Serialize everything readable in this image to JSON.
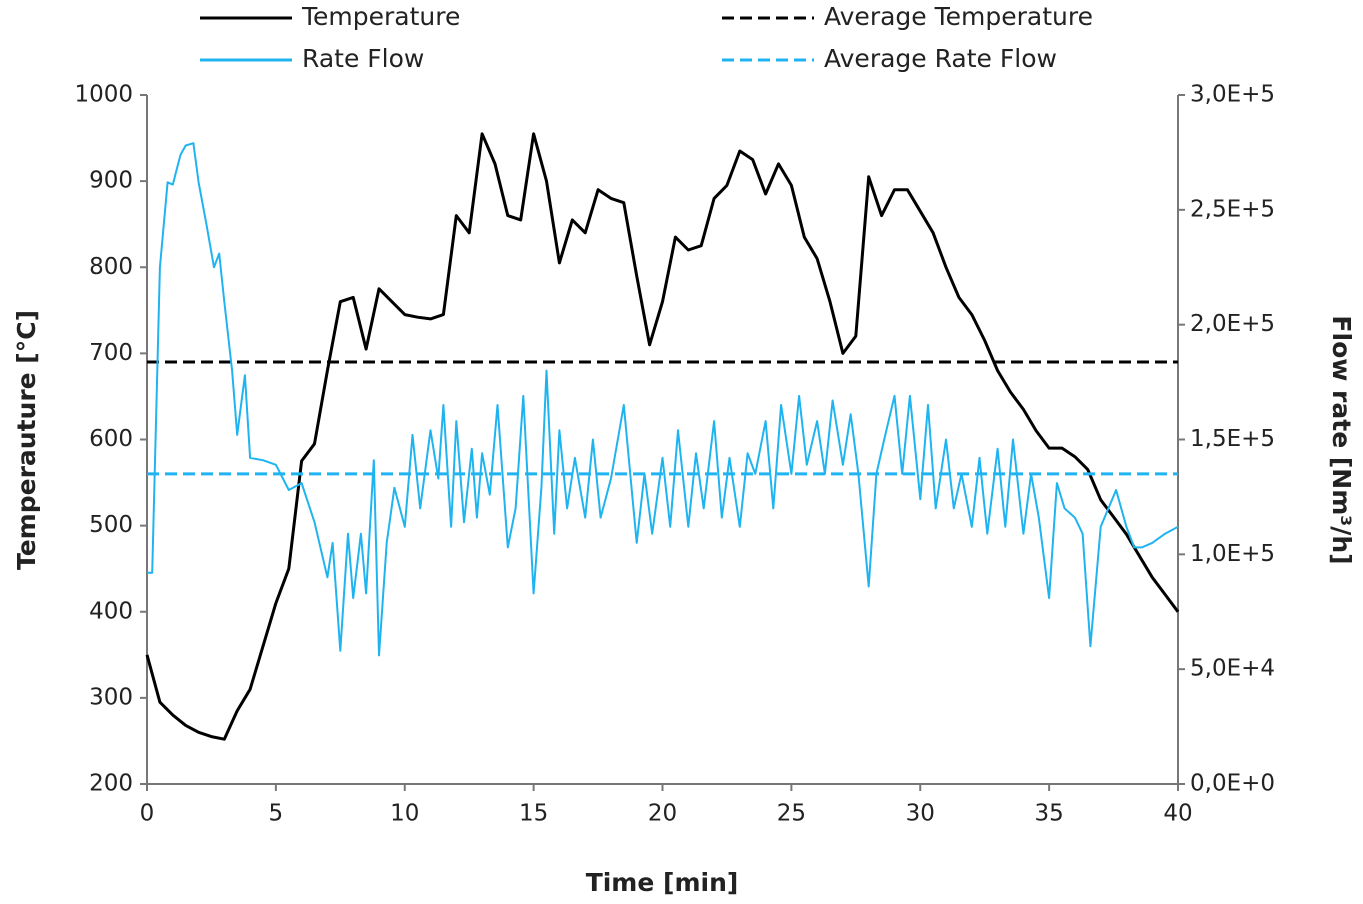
{
  "chart_data": {
    "type": "line",
    "xlabel": "Time [min]",
    "ylabel": "Temperauture [°C]",
    "y2label": "Flow rate [Nm³/h]",
    "xlim": [
      0,
      40
    ],
    "xticks": [
      0,
      5,
      10,
      15,
      20,
      25,
      30,
      35,
      40
    ],
    "ylim": [
      200,
      1000
    ],
    "yticks": [
      200,
      300,
      400,
      500,
      600,
      700,
      800,
      900,
      1000
    ],
    "y2lim": [
      0,
      300000
    ],
    "y2ticks": [
      {
        "value": 0,
        "label": "0,0E+0"
      },
      {
        "value": 50000,
        "label": "5,0E+4"
      },
      {
        "value": 100000,
        "label": "1,0E+5"
      },
      {
        "value": 150000,
        "label": "1,5E+5"
      },
      {
        "value": 200000,
        "label": "2,0E+5"
      },
      {
        "value": 250000,
        "label": "2,5E+5"
      },
      {
        "value": 300000,
        "label": "3,0E+5"
      }
    ],
    "grid": false,
    "series": [
      {
        "name": "Temperature",
        "color": "#000000",
        "linestyle": "solid",
        "axis": "y",
        "x": [
          0,
          0.5,
          1,
          1.5,
          2,
          2.5,
          3,
          3.5,
          4,
          4.5,
          5,
          5.5,
          6,
          6.5,
          7,
          7.5,
          8,
          8.5,
          9,
          9.5,
          10,
          10.5,
          11,
          11.5,
          12,
          12.5,
          13,
          13.5,
          14,
          14.5,
          15,
          15.5,
          16,
          16.5,
          17,
          17.5,
          18,
          18.5,
          19,
          19.5,
          20,
          20.5,
          21,
          21.5,
          22,
          22.5,
          23,
          23.5,
          24,
          24.5,
          25,
          25.5,
          26,
          26.5,
          27,
          27.5,
          28,
          28.5,
          29,
          29.5,
          30,
          30.5,
          31,
          31.5,
          32,
          32.5,
          33,
          33.5,
          34,
          34.5,
          35,
          35.5,
          36,
          36.5,
          37,
          37.5,
          38,
          38.5,
          39,
          39.5,
          40
        ],
        "values": [
          350,
          295,
          280,
          268,
          260,
          255,
          252,
          285,
          310,
          360,
          410,
          450,
          575,
          595,
          680,
          760,
          765,
          705,
          775,
          760,
          745,
          742,
          740,
          745,
          860,
          840,
          955,
          920,
          860,
          855,
          955,
          900,
          805,
          855,
          840,
          890,
          880,
          875,
          790,
          710,
          760,
          835,
          820,
          825,
          880,
          895,
          935,
          925,
          885,
          920,
          895,
          835,
          810,
          760,
          700,
          720,
          905,
          860,
          890,
          890,
          865,
          840,
          800,
          765,
          745,
          715,
          680,
          655,
          635,
          610,
          590,
          590,
          580,
          565,
          530,
          510,
          490,
          465,
          440,
          420,
          400
        ]
      },
      {
        "name": "Average Temperature",
        "color": "#000000",
        "linestyle": "dashed",
        "axis": "y",
        "x": [
          0,
          40
        ],
        "values": [
          690,
          690
        ]
      },
      {
        "name": "Rate Flow",
        "color": "#1fb4f0",
        "linestyle": "solid",
        "axis": "y2",
        "x": [
          0,
          0.2,
          0.5,
          0.8,
          1,
          1.3,
          1.5,
          1.8,
          2,
          2.3,
          2.6,
          2.8,
          3,
          3.3,
          3.5,
          3.8,
          4,
          4.5,
          5,
          5.5,
          6,
          6.5,
          7,
          7.2,
          7.5,
          7.8,
          8,
          8.3,
          8.5,
          8.8,
          9,
          9.3,
          9.6,
          10,
          10.3,
          10.6,
          11,
          11.3,
          11.5,
          11.8,
          12,
          12.3,
          12.6,
          12.8,
          13,
          13.3,
          13.6,
          14,
          14.3,
          14.6,
          15,
          15.3,
          15.5,
          15.8,
          16,
          16.3,
          16.6,
          17,
          17.3,
          17.6,
          18,
          18.5,
          19,
          19.3,
          19.6,
          20,
          20.3,
          20.6,
          21,
          21.3,
          21.6,
          22,
          22.3,
          22.6,
          23,
          23.3,
          23.6,
          24,
          24.3,
          24.6,
          25,
          25.3,
          25.6,
          26,
          26.3,
          26.6,
          27,
          27.3,
          27.6,
          28,
          28.3,
          28.6,
          29,
          29.3,
          29.6,
          30,
          30.3,
          30.6,
          31,
          31.3,
          31.6,
          32,
          32.3,
          32.6,
          33,
          33.3,
          33.6,
          34,
          34.3,
          34.6,
          35,
          35.3,
          35.6,
          36,
          36.3,
          36.6,
          37,
          37.3,
          37.6,
          38,
          38.3,
          38.6,
          39,
          39.5,
          40
        ],
        "values": [
          92000,
          92000,
          225000,
          262000,
          261000,
          274000,
          278000,
          279000,
          262000,
          244000,
          225000,
          231000,
          210000,
          180000,
          152000,
          178000,
          142000,
          141000,
          139000,
          128000,
          131000,
          114000,
          90000,
          105000,
          58000,
          109000,
          81000,
          109000,
          83000,
          141000,
          56000,
          105000,
          129000,
          112000,
          152000,
          120000,
          154000,
          133000,
          165000,
          112000,
          158000,
          114000,
          146000,
          116000,
          144000,
          126000,
          165000,
          103000,
          120000,
          169000,
          83000,
          129000,
          180000,
          109000,
          154000,
          120000,
          142000,
          116000,
          150000,
          116000,
          133000,
          165000,
          105000,
          135000,
          109000,
          142000,
          112000,
          154000,
          112000,
          144000,
          120000,
          158000,
          116000,
          142000,
          112000,
          144000,
          135000,
          158000,
          120000,
          165000,
          135000,
          169000,
          139000,
          158000,
          135000,
          167000,
          139000,
          161000,
          135000,
          86000,
          135000,
          150000,
          169000,
          135000,
          169000,
          124000,
          165000,
          120000,
          150000,
          120000,
          135000,
          112000,
          142000,
          109000,
          146000,
          112000,
          150000,
          109000,
          135000,
          116000,
          81000,
          131000,
          120000,
          116000,
          109000,
          60000,
          112000,
          120000,
          128000,
          112000,
          103000,
          103000,
          105000,
          109000,
          112000
        ]
      },
      {
        "name": "Average Rate Flow",
        "color": "#1fb4f0",
        "linestyle": "dashed",
        "axis": "y2",
        "x": [
          0,
          40
        ],
        "values": [
          135000,
          135000
        ]
      }
    ]
  }
}
